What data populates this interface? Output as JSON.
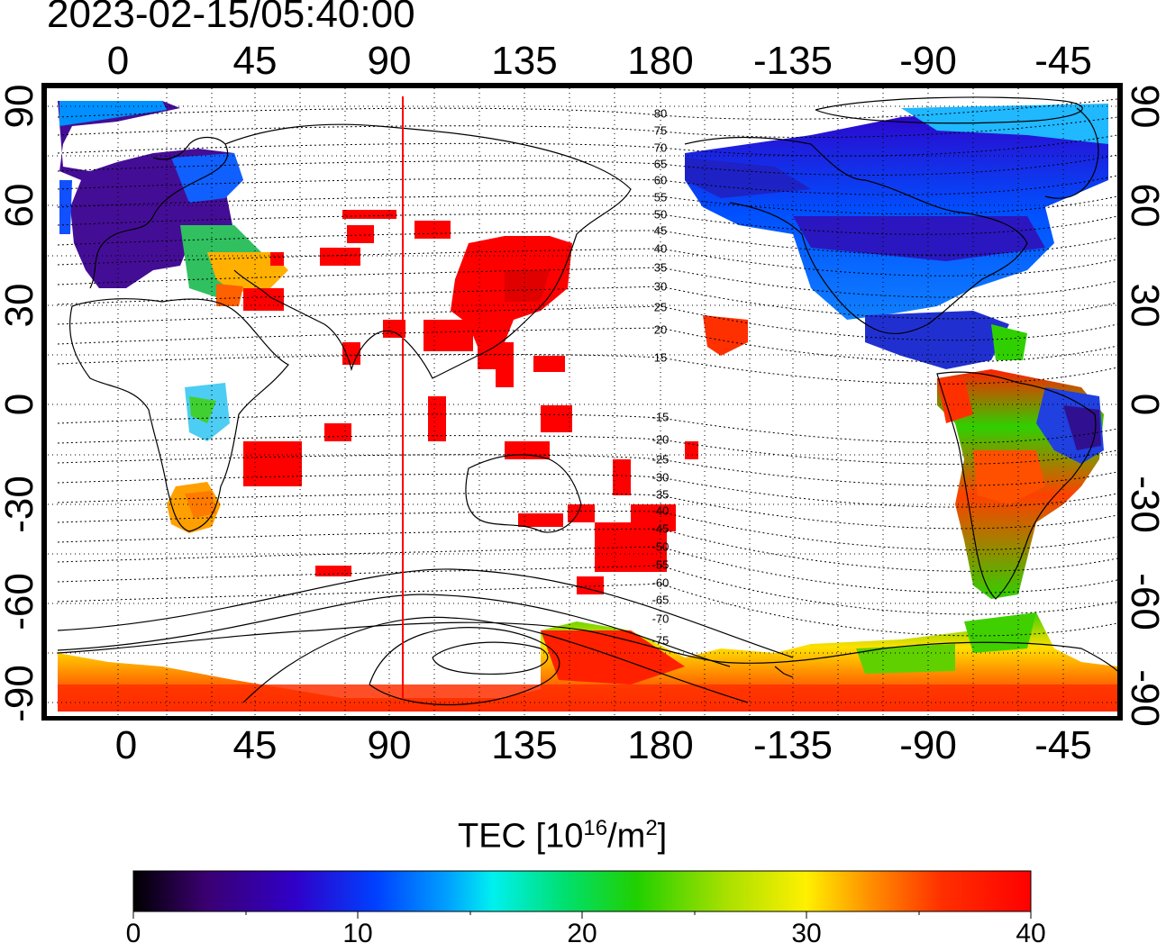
{
  "title": "2023-02-15/05:40:00",
  "map": {
    "x_ticks": [
      "0",
      "45",
      "90",
      "135",
      "180",
      "-135",
      "-90",
      "-45"
    ],
    "y_ticks": [
      "90",
      "60",
      "30",
      "0",
      "-30",
      "-60",
      "-90"
    ],
    "marker_longitude": 94,
    "magnetic_latitude_labels": [
      "80",
      "75",
      "70",
      "65",
      "60",
      "55",
      "50",
      "45",
      "40",
      "35",
      "30",
      "25",
      "20",
      "15",
      "-15",
      "-20",
      "-25",
      "-30",
      "-35",
      "-40",
      "-45",
      "-50",
      "-55",
      "-60",
      "-65",
      "-70",
      "-75"
    ],
    "grid": "dotted",
    "colors": {
      "marker": "#ff0000",
      "max_tec": "#ff0000"
    }
  },
  "colorbar": {
    "label_main": "TEC  [10",
    "label_sup1": "16",
    "label_mid": "/m",
    "label_sup2": "2",
    "label_end": "]",
    "ticks": [
      "0",
      "10",
      "20",
      "30",
      "40"
    ],
    "range": [
      0,
      40
    ],
    "stops": [
      "#000000",
      "#3a0070",
      "#3000c8",
      "#0040ff",
      "#00a0ff",
      "#00f0f0",
      "#00e070",
      "#20d000",
      "#a8e000",
      "#fff000",
      "#ff9000",
      "#ff3000",
      "#ff0000"
    ]
  }
}
